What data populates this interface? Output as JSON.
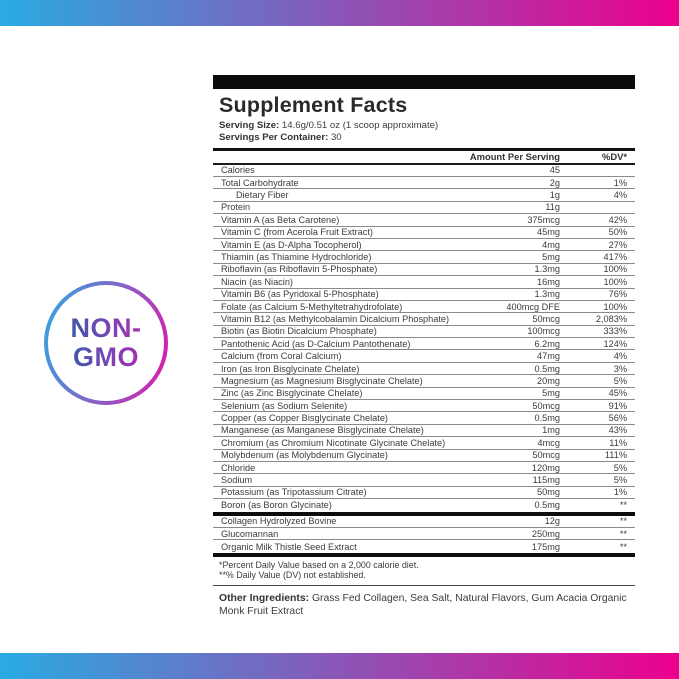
{
  "badge": {
    "line1": "NON-",
    "line2": "GMO"
  },
  "colors": {
    "gradient_start": "#29abe2",
    "gradient_end": "#ec008c",
    "badge_text_start": "#3f57a7",
    "badge_text_end": "#a92cb0",
    "bar_black": "#0c0c0c"
  },
  "label": {
    "title": "Supplement Facts",
    "serving_size_label": "Serving Size:",
    "serving_size_value": "14.6g/0.51 oz (1 scoop approximate)",
    "servings_label": "Servings Per Container:",
    "servings_value": "30",
    "columns": {
      "amount": "Amount Per Serving",
      "dv": "%DV*"
    },
    "rows": [
      {
        "name": "Calories",
        "amount": "45",
        "dv": "",
        "indent": false
      },
      {
        "name": "Total Carbohydrate",
        "amount": "2g",
        "dv": "1%",
        "indent": false
      },
      {
        "name": "Dietary Fiber",
        "amount": "1g",
        "dv": "4%",
        "indent": true
      },
      {
        "name": "Protein",
        "amount": "11g",
        "dv": "",
        "indent": false
      },
      {
        "name": "Vitamin A (as Beta Carotene)",
        "amount": "375mcg",
        "dv": "42%",
        "indent": false
      },
      {
        "name": "Vitamin C (from Acerola Fruit Extract)",
        "amount": "45mg",
        "dv": "50%",
        "indent": false
      },
      {
        "name": "Vitamin E (as D-Alpha Tocopherol)",
        "amount": "4mg",
        "dv": "27%",
        "indent": false
      },
      {
        "name": "Thiamin (as Thiamine Hydrochloride)",
        "amount": "5mg",
        "dv": "417%",
        "indent": false
      },
      {
        "name": "Riboflavin (as Riboflavin 5-Phosphate)",
        "amount": "1.3mg",
        "dv": "100%",
        "indent": false
      },
      {
        "name": "Niacin (as Niacin)",
        "amount": "16mg",
        "dv": "100%",
        "indent": false
      },
      {
        "name": "Vitamin B6 (as Pyridoxal 5-Phosphate)",
        "amount": "1.3mg",
        "dv": "76%",
        "indent": false
      },
      {
        "name": "Folate (as Calcium 5-Methyltetrahydrofolate)",
        "amount": "400mcg DFE",
        "dv": "100%",
        "indent": false
      },
      {
        "name": "Vitamin B12 (as Methylcobalamin Dicalcium Phosphate)",
        "amount": "50mcg",
        "dv": "2,083%",
        "indent": false
      },
      {
        "name": "Biotin (as Biotin Dicalcium Phosphate)",
        "amount": "100mcg",
        "dv": "333%",
        "indent": false
      },
      {
        "name": "Pantothenic Acid (as D-Calcium Pantothenate)",
        "amount": "6.2mg",
        "dv": "124%",
        "indent": false
      },
      {
        "name": "Calcium (from Coral Calcium)",
        "amount": "47mg",
        "dv": "4%",
        "indent": false
      },
      {
        "name": "Iron (as Iron Bisglycinate Chelate)",
        "amount": "0.5mg",
        "dv": "3%",
        "indent": false
      },
      {
        "name": "Magnesium (as Magnesium Bisglycinate Chelate)",
        "amount": "20mg",
        "dv": "5%",
        "indent": false
      },
      {
        "name": "Zinc (as Zinc Bisglycinate Chelate)",
        "amount": "5mg",
        "dv": "45%",
        "indent": false
      },
      {
        "name": "Selenium (as Sodium Selenite)",
        "amount": "50mcg",
        "dv": "91%",
        "indent": false
      },
      {
        "name": "Copper (as Copper Bisglycinate Chelate)",
        "amount": "0.5mg",
        "dv": "56%",
        "indent": false
      },
      {
        "name": "Manganese (as Manganese Bisglycinate Chelate)",
        "amount": "1mg",
        "dv": "43%",
        "indent": false
      },
      {
        "name": "Chromium (as Chromium Nicotinate Glycinate Chelate)",
        "amount": "4mcg",
        "dv": "11%",
        "indent": false
      },
      {
        "name": "Molybdenum (as Molybdenum Glycinate)",
        "amount": "50mcg",
        "dv": "111%",
        "indent": false
      },
      {
        "name": "Chloride",
        "amount": "120mg",
        "dv": "5%",
        "indent": false
      },
      {
        "name": "Sodium",
        "amount": "115mg",
        "dv": "5%",
        "indent": false
      },
      {
        "name": "Potassium (as Tripotassium Citrate)",
        "amount": "50mg",
        "dv": "1%",
        "indent": false
      },
      {
        "name": "Boron (as Boron Glycinate)",
        "amount": "0.5mg",
        "dv": "**",
        "indent": false
      }
    ],
    "secondary_rows": [
      {
        "name": "Collagen Hydrolyzed Bovine",
        "amount": "12g",
        "dv": "**",
        "indent": false
      },
      {
        "name": "Glucomannan",
        "amount": "250mg",
        "dv": "**",
        "indent": false
      },
      {
        "name": "Organic Milk Thistle Seed Extract",
        "amount": "175mg",
        "dv": "**",
        "indent": false
      }
    ],
    "footnotes": [
      "*Percent Daily Value based on a 2,000 calorie diet.",
      "**% Daily Value (DV) not established."
    ],
    "other_ingredients_label": "Other Ingredients:",
    "other_ingredients_value": "Grass Fed Collagen, Sea Salt, Natural Flavors, Gum Acacia Organic Monk Fruit Extract"
  }
}
